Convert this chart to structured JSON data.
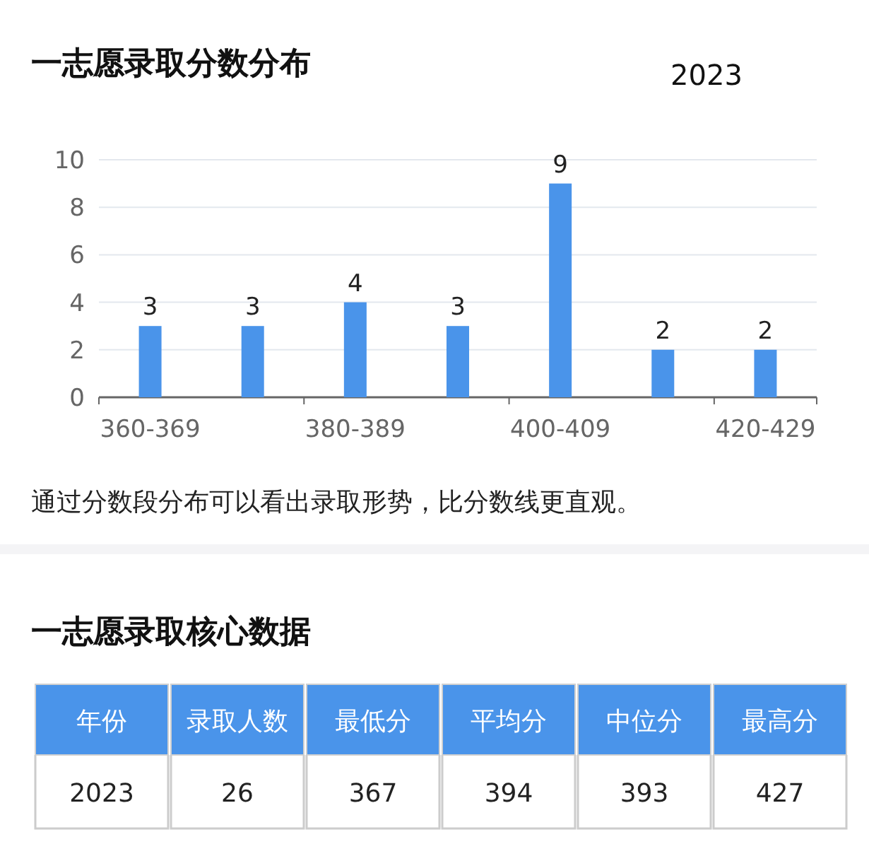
{
  "chart_data": [
    {
      "type": "bar",
      "title": "一志愿录取分数分布",
      "subtitle": "2023",
      "categories": [
        "360-369",
        null,
        "380-389",
        null,
        "400-409",
        null,
        "420-429"
      ],
      "values": [
        3,
        3,
        4,
        3,
        9,
        2,
        2
      ],
      "color": "#4a94ea",
      "ylim": [
        0,
        10
      ],
      "yticks": [
        0,
        2,
        4,
        6,
        8,
        10
      ],
      "grid": "y",
      "data_labels": true,
      "annotations": [
        "通过分数段分布可以看出录取形势，比分数线更直观。"
      ]
    },
    {
      "type": "other",
      "title": "一志愿录取核心数据",
      "categories": [
        "年份",
        "录取人数",
        "最低分",
        "平均分",
        "中位分",
        "最高分"
      ],
      "values": [
        2023,
        26,
        367,
        394,
        393,
        427
      ],
      "color": "#4a94ea",
      "data_labels": true
    }
  ]
}
